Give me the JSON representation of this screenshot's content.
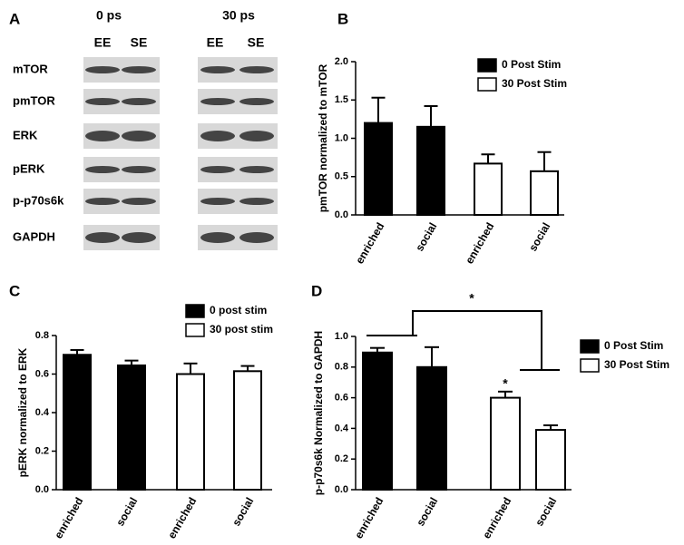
{
  "panel_a": {
    "label": "A",
    "timepoints": [
      "0 ps",
      "30 ps"
    ],
    "lanes": [
      "EE",
      "SE",
      "EE",
      "SE"
    ],
    "rows": [
      "mTOR",
      "pmTOR",
      "ERK",
      "pERK",
      "p-p70s6k",
      "GAPDH"
    ]
  },
  "chart_data": [
    {
      "type": "bar",
      "panel": "B",
      "ylabel": "pmTOR normalized to mTOR",
      "categories": [
        "enriched",
        "social"
      ],
      "series": [
        {
          "name": "0 Post Stim",
          "color": "#000000",
          "values": [
            1.2,
            1.15
          ],
          "errors": [
            0.33,
            0.27
          ]
        },
        {
          "name": "30 Post Stim",
          "color": "#ffffff",
          "values": [
            0.67,
            0.57
          ],
          "errors": [
            0.12,
            0.25
          ]
        }
      ],
      "ylim": [
        0,
        2
      ],
      "yticks": [
        {
          "value": 0,
          "label": "0.0"
        },
        {
          "value": 0.5,
          "label": "0.5"
        },
        {
          "value": 1,
          "label": "1.0"
        },
        {
          "value": 1.5,
          "label": "1.5"
        },
        {
          "value": 2,
          "label": "2.0"
        }
      ]
    },
    {
      "type": "bar",
      "panel": "C",
      "ylabel": "pERK normalized to ERK",
      "categories": [
        "enriched",
        "social"
      ],
      "series": [
        {
          "name": "0 post stim",
          "color": "#000000",
          "values": [
            0.7,
            0.645
          ],
          "errors": [
            0.025,
            0.025
          ]
        },
        {
          "name": "30 post stim",
          "color": "#ffffff",
          "values": [
            0.6,
            0.615
          ],
          "errors": [
            0.055,
            0.027
          ]
        }
      ],
      "ylim": [
        0,
        0.8
      ],
      "yticks": [
        {
          "value": 0,
          "label": "0.0"
        },
        0.2,
        0.4,
        0.6,
        0.8
      ]
    },
    {
      "type": "bar",
      "panel": "D",
      "ylabel": "p-p70s6k Normalized to GAPDH",
      "categories": [
        "enriched",
        "social"
      ],
      "series": [
        {
          "name": "0 Post Stim",
          "color": "#000000",
          "values": [
            0.895,
            0.8
          ],
          "errors": [
            0.03,
            0.13
          ]
        },
        {
          "name": "30 Post Stim",
          "color": "#ffffff",
          "values": [
            0.6,
            0.39
          ],
          "errors": [
            0.04,
            0.03
          ]
        }
      ],
      "ylim": [
        0,
        1
      ],
      "yticks": [
        {
          "value": 0,
          "label": "0.0"
        },
        0.2,
        0.4,
        0.6,
        0.8,
        {
          "value": 1,
          "label": "1.0"
        }
      ],
      "annotations": [
        "*",
        "*"
      ]
    }
  ]
}
